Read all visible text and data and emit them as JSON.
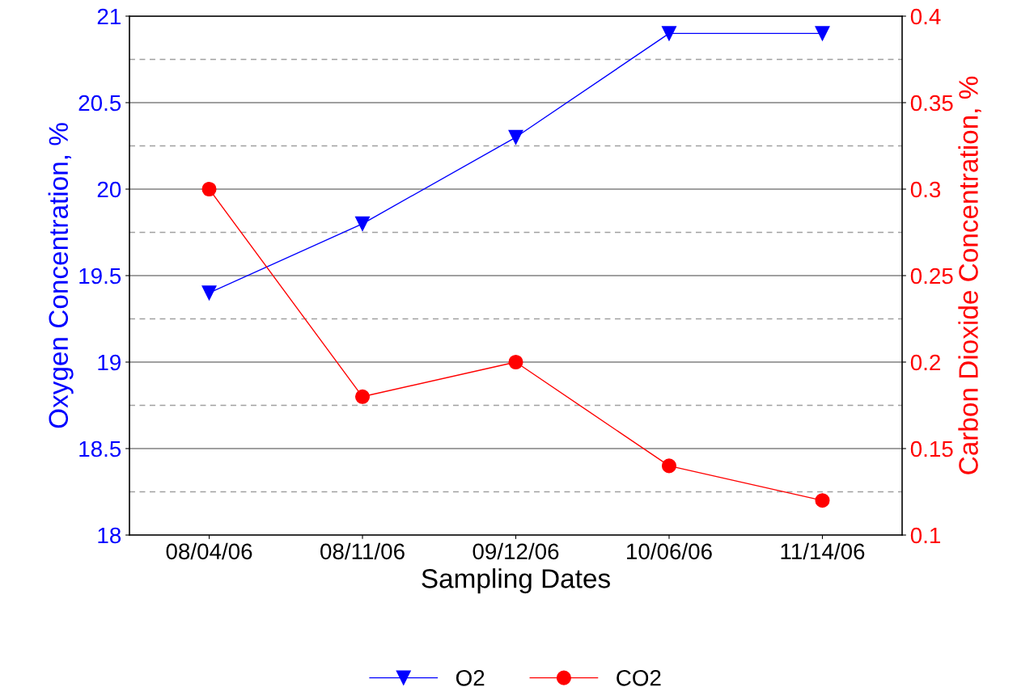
{
  "chart_data": {
    "type": "line",
    "xlabel": "Sampling Dates",
    "ylabel": "Oxygen Concentration, %",
    "y2label": "Carbon Dioxide Concentration, %",
    "categories": [
      "08/04/06",
      "08/11/06",
      "09/12/06",
      "10/06/06",
      "11/14/06"
    ],
    "series": [
      {
        "name": "O2",
        "color": "#0000ff",
        "marker": "triangle",
        "values": [
          19.4,
          19.8,
          20.3,
          20.9,
          20.9
        ]
      },
      {
        "name": "CO2",
        "color": "#ff0000",
        "marker": "circle",
        "axis": "y2",
        "values": [
          0.3,
          0.18,
          0.2,
          0.14,
          0.12
        ]
      }
    ],
    "ylim": [
      18,
      21
    ],
    "yticks": [
      18,
      {
        "value": 18.25,
        "label": null
      },
      18.5,
      {
        "value": 18.75,
        "label": null
      },
      19,
      {
        "value": 19.25,
        "label": null
      },
      19.5,
      {
        "value": 19.75,
        "label": null
      },
      20,
      {
        "value": 20.25,
        "label": null
      },
      20.5,
      {
        "value": 20.75,
        "label": null
      },
      21
    ],
    "y2lim": [
      0.1,
      0.4
    ],
    "y2ticks": [
      0.1,
      0.15,
      0.2,
      0.25,
      0.3,
      0.35,
      0.4
    ],
    "grid": "y",
    "legend": "bottom",
    "line_style": "solid"
  }
}
